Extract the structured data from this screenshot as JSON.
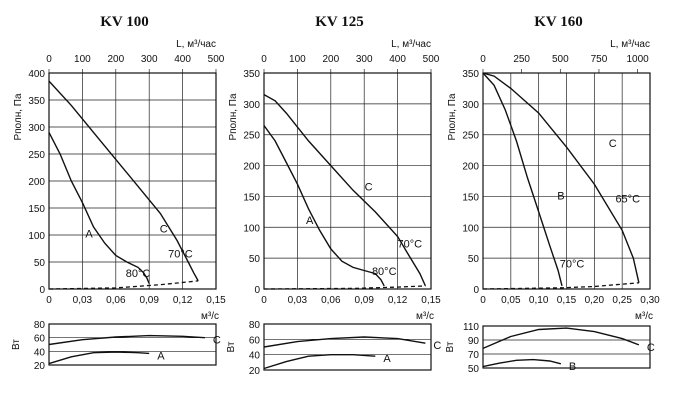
{
  "chart_data": [
    {
      "type": "line",
      "title": "KV 100",
      "top_axis": {
        "label": "L, м³/час",
        "ticks": [
          "0",
          "100",
          "200",
          "300",
          "400",
          "500"
        ],
        "range": [
          0,
          500
        ]
      },
      "x": {
        "label": "м³/с",
        "ticks": [
          "0",
          "0,03",
          "0,06",
          "0,09",
          "0,12",
          "0,15"
        ],
        "range": [
          0,
          0.15
        ]
      },
      "y": {
        "label": "Pполн, Па",
        "ticks": [
          "0",
          "50",
          "100",
          "150",
          "200",
          "250",
          "300",
          "350",
          "400"
        ],
        "range": [
          0,
          400
        ]
      },
      "series": [
        {
          "name": "A",
          "points": [
            [
              0,
              290
            ],
            [
              0.01,
              250
            ],
            [
              0.02,
              200
            ],
            [
              0.03,
              160
            ],
            [
              0.04,
              115
            ],
            [
              0.05,
              85
            ],
            [
              0.06,
              62
            ],
            [
              0.07,
              50
            ],
            [
              0.08,
              40
            ],
            [
              0.085,
              30
            ],
            [
              0.088,
              20
            ],
            [
              0.09,
              10
            ]
          ]
        },
        {
          "name": "C",
          "points": [
            [
              0,
              385
            ],
            [
              0.02,
              340
            ],
            [
              0.04,
              290
            ],
            [
              0.06,
              240
            ],
            [
              0.08,
              190
            ],
            [
              0.1,
              140
            ],
            [
              0.115,
              90
            ],
            [
              0.125,
              50
            ],
            [
              0.13,
              30
            ],
            [
              0.134,
              15
            ]
          ]
        }
      ],
      "system_curve": [
        [
          0,
          0
        ],
        [
          0.06,
          2
        ],
        [
          0.1,
          8
        ],
        [
          0.134,
          15
        ]
      ],
      "annotations": [
        {
          "text": "A",
          "at": [
            0.036,
            95
          ]
        },
        {
          "text": "C",
          "at": [
            0.103,
            105
          ]
        },
        {
          "text": "70°C",
          "at": [
            0.118,
            58
          ]
        },
        {
          "text": "80°C",
          "at": [
            0.08,
            22
          ]
        }
      ],
      "power": {
        "y_label": "Вт",
        "ticks": [
          "20",
          "40",
          "60",
          "80"
        ],
        "range": [
          20,
          80
        ],
        "series": [
          {
            "name": "C",
            "points": [
              [
                0,
                50
              ],
              [
                0.03,
                57
              ],
              [
                0.06,
                61
              ],
              [
                0.09,
                63
              ],
              [
                0.12,
                62
              ],
              [
                0.14,
                60
              ]
            ]
          },
          {
            "name": "A",
            "points": [
              [
                0,
                22
              ],
              [
                0.02,
                32
              ],
              [
                0.04,
                38
              ],
              [
                0.06,
                39
              ],
              [
                0.08,
                38
              ],
              [
                0.09,
                37
              ]
            ]
          }
        ]
      }
    },
    {
      "type": "line",
      "title": "KV 125",
      "top_axis": {
        "label": "L, м³/час",
        "ticks": [
          "0",
          "100",
          "200",
          "300",
          "400",
          "500"
        ],
        "range": [
          0,
          500
        ]
      },
      "x": {
        "label": "м³/с",
        "ticks": [
          "0",
          "0,03",
          "0,06",
          "0,09",
          "0,12",
          "0,15"
        ],
        "range": [
          0,
          0.15
        ]
      },
      "y": {
        "label": "Pполн, Па",
        "ticks": [
          "0",
          "50",
          "100",
          "150",
          "200",
          "250",
          "300",
          "350"
        ],
        "range": [
          0,
          350
        ]
      },
      "series": [
        {
          "name": "A",
          "points": [
            [
              0,
              265
            ],
            [
              0.01,
              240
            ],
            [
              0.02,
              205
            ],
            [
              0.03,
              170
            ],
            [
              0.04,
              130
            ],
            [
              0.05,
              95
            ],
            [
              0.06,
              65
            ],
            [
              0.07,
              45
            ],
            [
              0.08,
              35
            ],
            [
              0.09,
              30
            ],
            [
              0.1,
              25
            ],
            [
              0.105,
              15
            ],
            [
              0.108,
              5
            ]
          ]
        },
        {
          "name": "C",
          "points": [
            [
              0,
              315
            ],
            [
              0.01,
              305
            ],
            [
              0.02,
              285
            ],
            [
              0.04,
              240
            ],
            [
              0.06,
              200
            ],
            [
              0.08,
              160
            ],
            [
              0.1,
              125
            ],
            [
              0.12,
              85
            ],
            [
              0.13,
              55
            ],
            [
              0.14,
              25
            ],
            [
              0.145,
              5
            ]
          ]
        }
      ],
      "system_curve": [
        [
          0,
          0
        ],
        [
          0.08,
          1
        ],
        [
          0.12,
          3
        ],
        [
          0.145,
          5
        ]
      ],
      "annotations": [
        {
          "text": "A",
          "at": [
            0.041,
            105
          ]
        },
        {
          "text": "C",
          "at": [
            0.094,
            160
          ]
        },
        {
          "text": "70°C",
          "at": [
            0.131,
            67
          ]
        },
        {
          "text": "80°C",
          "at": [
            0.108,
            23
          ]
        }
      ],
      "power": {
        "y_label": "Вт",
        "ticks": [
          "20",
          "40",
          "60",
          "80"
        ],
        "range": [
          20,
          80
        ],
        "series": [
          {
            "name": "C",
            "points": [
              [
                0,
                50
              ],
              [
                0.03,
                57
              ],
              [
                0.06,
                61
              ],
              [
                0.09,
                63
              ],
              [
                0.12,
                61
              ],
              [
                0.145,
                55
              ]
            ]
          },
          {
            "name": "A",
            "points": [
              [
                0,
                22
              ],
              [
                0.02,
                31
              ],
              [
                0.04,
                38
              ],
              [
                0.06,
                40
              ],
              [
                0.08,
                40
              ],
              [
                0.1,
                38
              ]
            ]
          }
        ]
      }
    },
    {
      "type": "line",
      "title": "KV 160",
      "top_axis": {
        "label": "L, м³/час",
        "ticks": [
          "0",
          "250",
          "500",
          "750",
          "1000"
        ],
        "range": [
          0,
          1080
        ]
      },
      "x": {
        "label": "м³/с",
        "ticks": [
          "0",
          "0,05",
          "0,10",
          "0,15",
          "0,20",
          "0,25",
          "0,30"
        ],
        "range": [
          0,
          0.3
        ]
      },
      "y": {
        "label": "Pполн, Па",
        "ticks": [
          "0",
          "50",
          "100",
          "150",
          "200",
          "250",
          "300",
          "350"
        ],
        "range": [
          0,
          350
        ]
      },
      "series": [
        {
          "name": "B",
          "points": [
            [
              0,
              350
            ],
            [
              0.02,
              330
            ],
            [
              0.04,
              290
            ],
            [
              0.06,
              240
            ],
            [
              0.08,
              180
            ],
            [
              0.1,
              125
            ],
            [
              0.12,
              70
            ],
            [
              0.135,
              30
            ],
            [
              0.142,
              5
            ]
          ]
        },
        {
          "name": "C",
          "points": [
            [
              0,
              350
            ],
            [
              0.02,
              345
            ],
            [
              0.05,
              325
            ],
            [
              0.1,
              285
            ],
            [
              0.15,
              230
            ],
            [
              0.2,
              170
            ],
            [
              0.25,
              95
            ],
            [
              0.27,
              50
            ],
            [
              0.28,
              10
            ]
          ]
        }
      ],
      "system_curve": [
        [
          0,
          0
        ],
        [
          0.142,
          2
        ],
        [
          0.2,
          4
        ],
        [
          0.28,
          10
        ]
      ],
      "annotations": [
        {
          "text": "B",
          "at": [
            0.14,
            145
          ]
        },
        {
          "text": "C",
          "at": [
            0.233,
            230
          ]
        },
        {
          "text": "65°C",
          "at": [
            0.26,
            140
          ]
        },
        {
          "text": "70°C",
          "at": [
            0.16,
            35
          ]
        }
      ],
      "power": {
        "y_label": "Вт",
        "ticks": [
          "50",
          "70",
          "90",
          "110"
        ],
        "range": [
          50,
          110
        ],
        "series": [
          {
            "name": "C",
            "points": [
              [
                0,
                78
              ],
              [
                0.05,
                95
              ],
              [
                0.1,
                105
              ],
              [
                0.15,
                107
              ],
              [
                0.2,
                102
              ],
              [
                0.25,
                92
              ],
              [
                0.28,
                83
              ]
            ]
          },
          {
            "name": "B",
            "points": [
              [
                0,
                52
              ],
              [
                0.03,
                57
              ],
              [
                0.06,
                61
              ],
              [
                0.09,
                62
              ],
              [
                0.12,
                60
              ],
              [
                0.14,
                56
              ]
            ]
          }
        ]
      }
    }
  ]
}
